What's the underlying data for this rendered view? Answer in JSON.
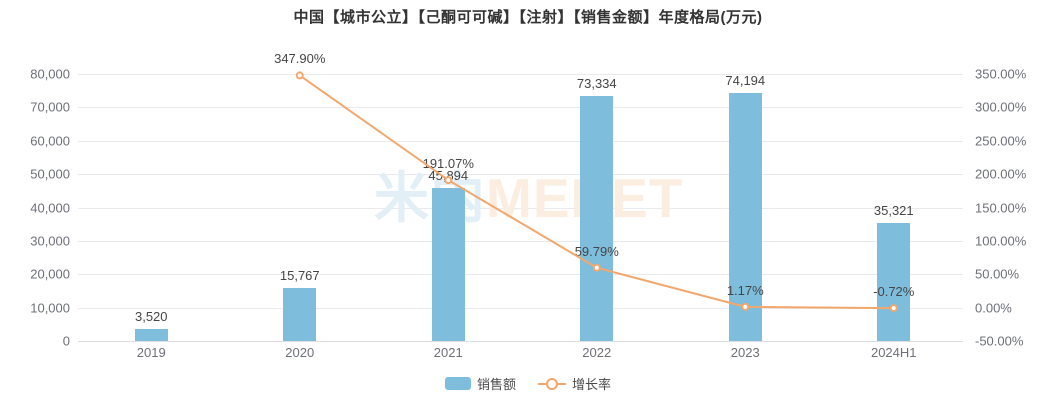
{
  "chart_data": {
    "type": "bar",
    "title": "中国【城市公立】【己酮可可碱】【注射】【销售金额】年度格局(万元)",
    "categories": [
      "2019",
      "2020",
      "2021",
      "2022",
      "2023",
      "2024H1"
    ],
    "series": [
      {
        "name": "销售额",
        "type": "bar",
        "axis": "left",
        "color": "#7EBEDC",
        "values": [
          3520,
          15767,
          45894,
          73334,
          74194,
          35321
        ],
        "labels": [
          "3,520",
          "15,767",
          "45,894",
          "73,334",
          "74,194",
          "35,321"
        ]
      },
      {
        "name": "增长率",
        "type": "line",
        "axis": "right",
        "color": "#F2A76C",
        "values": [
          null,
          347.9,
          191.07,
          59.79,
          1.17,
          -0.72
        ],
        "labels": [
          null,
          "347.90%",
          "191.07%",
          "59.79%",
          "1.17%",
          "-0.72%"
        ]
      }
    ],
    "left_axis": {
      "min": 0,
      "max": 80000,
      "step": 10000,
      "tick_labels_bottom_to_top": [
        "0",
        "10,000",
        "20,000",
        "30,000",
        "40,000",
        "50,000",
        "60,000",
        "70,000",
        "80,000"
      ]
    },
    "right_axis": {
      "min": -50,
      "max": 350,
      "step": 50,
      "tick_labels_bottom_to_top": [
        "-50.00%",
        "0.00%",
        "50.00%",
        "100.00%",
        "150.00%",
        "200.00%",
        "250.00%",
        "300.00%",
        "350.00%"
      ]
    },
    "legend": {
      "position": "bottom-center",
      "items": [
        "销售额",
        "增长率"
      ]
    },
    "grid": true,
    "watermark": {
      "part1": "米内",
      "part2": "MENET",
      "part1_color": "#E2EFF6",
      "part2_color": "#FBEEE1"
    },
    "colors": {
      "grid": "#e9e9ee",
      "axis_label": "#6e7079",
      "data_label": "#454545",
      "title": "#333333"
    }
  }
}
